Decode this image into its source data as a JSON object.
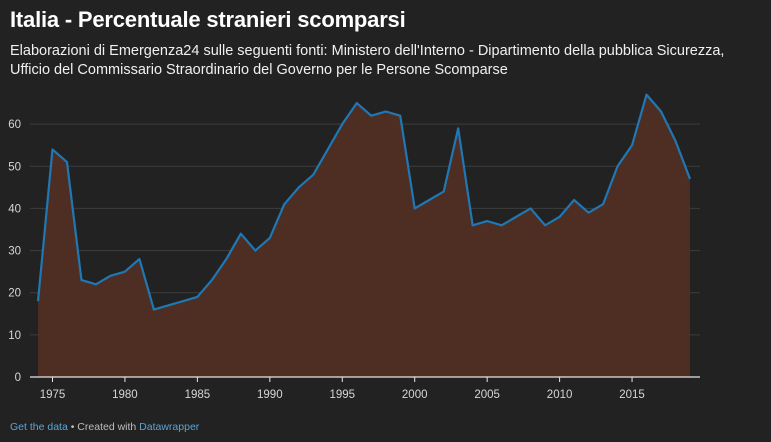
{
  "title": "Italia - Percentuale stranieri scomparsi",
  "subtitle": "Elaborazioni di Emergenza24 sulle seguenti fonti: Ministero dell'Interno - Dipartimento della pubblica Sicurezza, Ufficio del Commissario Straordinario del Governo per le Persone Scomparse",
  "footer": {
    "data_link": "Get the data",
    "separator": " • Created with ",
    "tool_link": "Datawrapper"
  },
  "colors": {
    "background": "#222222",
    "line": "#1f78b4",
    "area": "#4e2d22",
    "grid": "#3d3d3d",
    "axis_text": "#d6d6d6"
  },
  "chart_data": {
    "type": "area",
    "x": [
      1974,
      1975,
      1976,
      1977,
      1978,
      1979,
      1980,
      1981,
      1982,
      1983,
      1984,
      1985,
      1986,
      1987,
      1988,
      1989,
      1990,
      1991,
      1992,
      1993,
      1994,
      1995,
      1996,
      1997,
      1998,
      1999,
      2000,
      2001,
      2002,
      2003,
      2004,
      2005,
      2006,
      2007,
      2008,
      2009,
      2010,
      2011,
      2012,
      2013,
      2014,
      2015,
      2016,
      2017,
      2018,
      2019
    ],
    "values": [
      18,
      54,
      51,
      23,
      22,
      24,
      25,
      28,
      16,
      17,
      18,
      19,
      23,
      28,
      34,
      30,
      33,
      41,
      45,
      48,
      54,
      60,
      65,
      62,
      63,
      62,
      40,
      42,
      44,
      59,
      36,
      37,
      36,
      38,
      40,
      36,
      38,
      42,
      39,
      41,
      50,
      55,
      67,
      63,
      56,
      47
    ],
    "xticks": [
      1975,
      1980,
      1985,
      1990,
      1995,
      2000,
      2005,
      2010,
      2015
    ],
    "yticks": [
      0,
      10,
      20,
      30,
      40,
      50,
      60
    ],
    "xlim": [
      1974,
      2019
    ],
    "ylim": [
      0,
      70
    ],
    "grid": true,
    "xlabel": "",
    "ylabel": ""
  }
}
